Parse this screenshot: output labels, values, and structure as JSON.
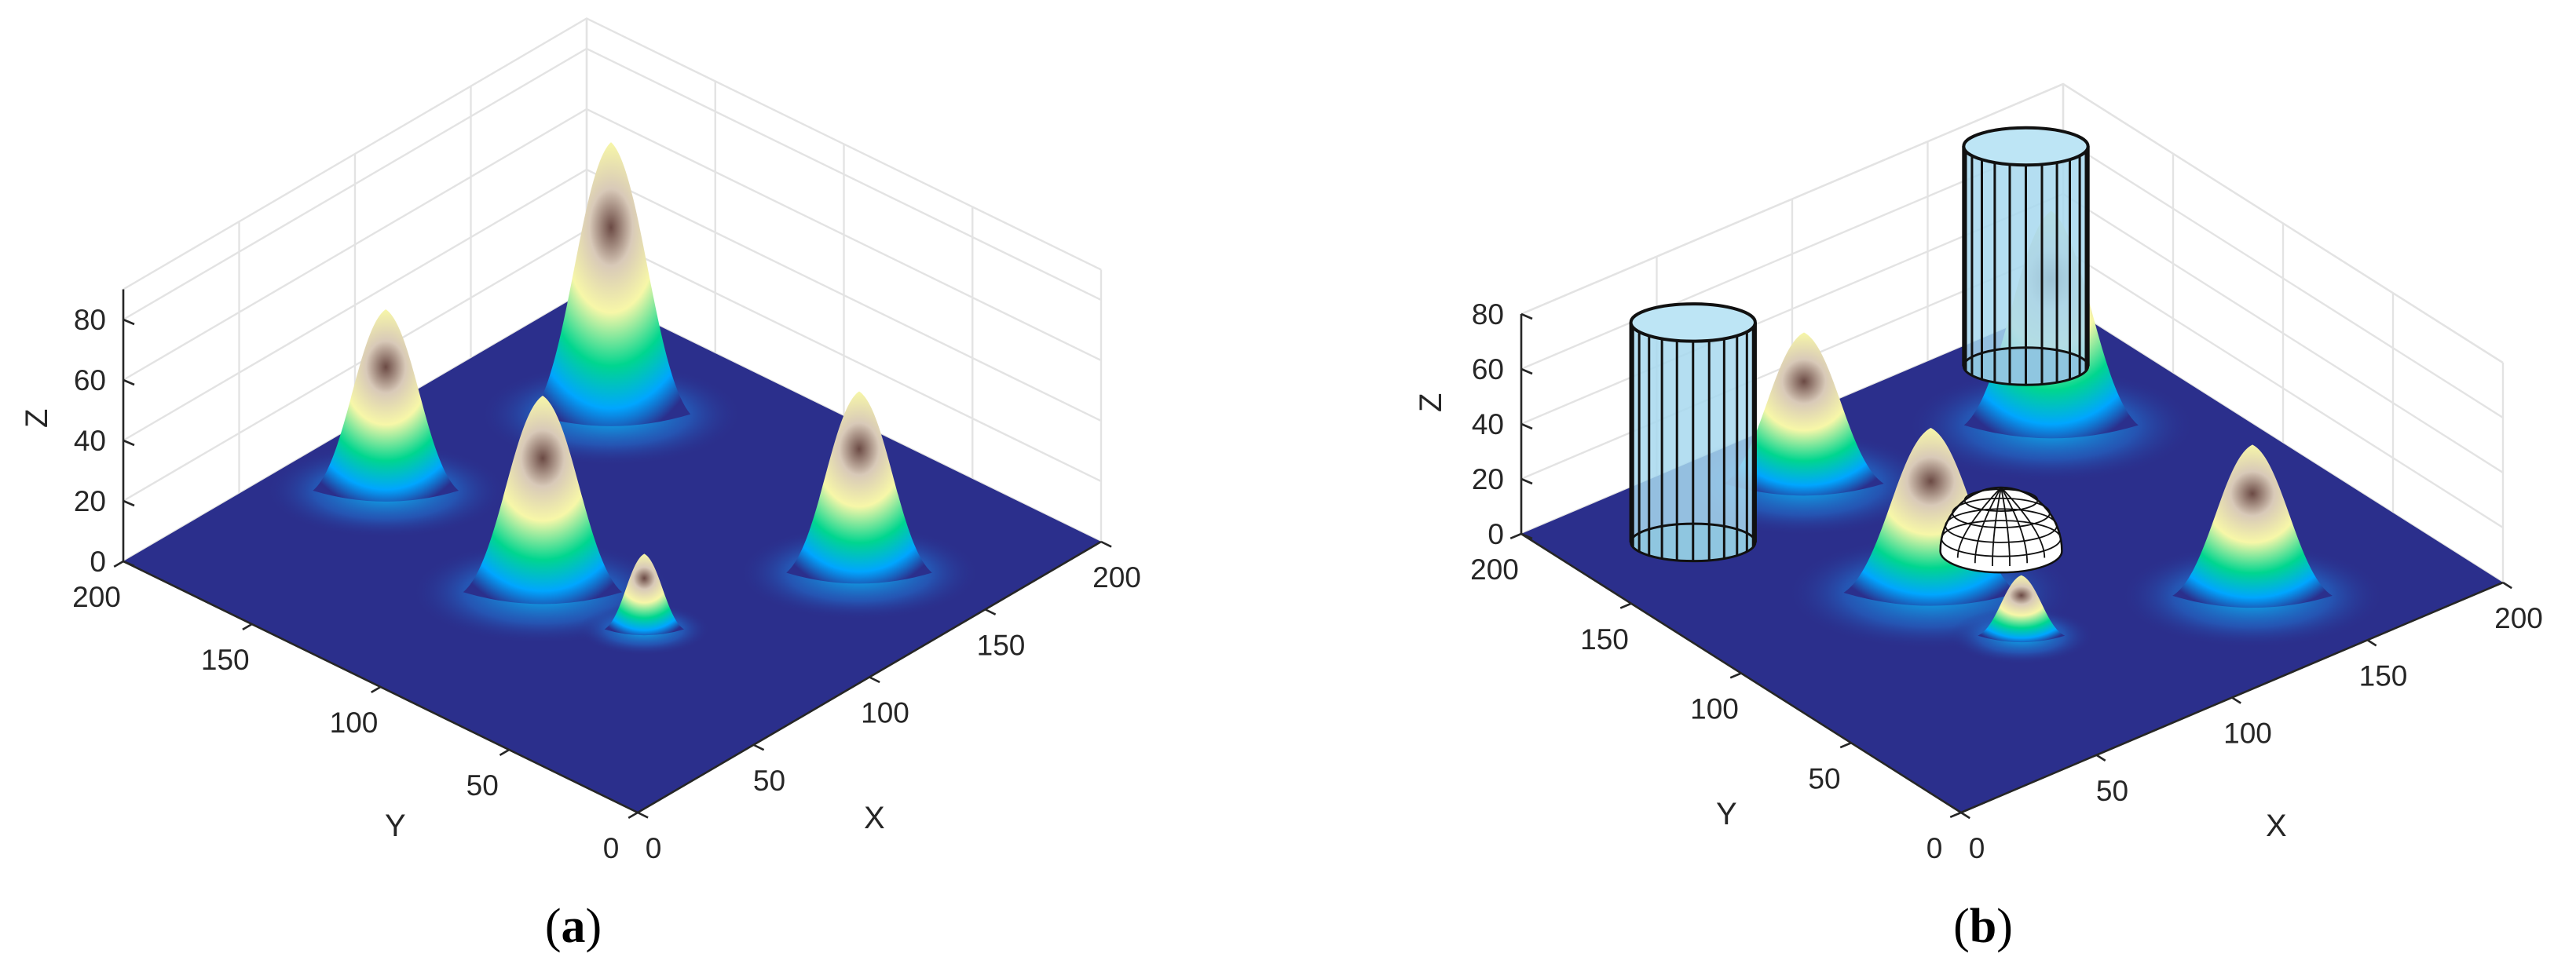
{
  "figure": {
    "panels": [
      {
        "caption_open": "(",
        "caption_letter": "a",
        "caption_close": ")"
      },
      {
        "caption_open": "(",
        "caption_letter": "b",
        "caption_close": ")"
      }
    ]
  },
  "chart_data": [
    {
      "type": "surface3d",
      "panel": "a",
      "xlabel": "X",
      "ylabel": "Y",
      "zlabel": "Z",
      "xlim": [
        0,
        200
      ],
      "ylim": [
        0,
        200
      ],
      "zlim": [
        0,
        90
      ],
      "xticks": [
        0,
        50,
        100,
        150,
        200
      ],
      "yticks": [
        0,
        50,
        100,
        150,
        200
      ],
      "zticks": [
        0,
        20,
        40,
        60,
        80
      ],
      "grid": true,
      "colormap": [
        "#2b2f8c",
        "#00a6ff",
        "#00d68f",
        "#f7f7a8",
        "#6b4a44"
      ],
      "peaks": [
        {
          "x": 155,
          "y": 150,
          "height": 90,
          "sigma": 12
        },
        {
          "x": 80,
          "y": 170,
          "height": 60,
          "sigma": 11
        },
        {
          "x": 140,
          "y": 40,
          "height": 60,
          "sigma": 11
        },
        {
          "x": 70,
          "y": 100,
          "height": 65,
          "sigma": 12
        },
        {
          "x": 75,
          "y": 65,
          "height": 25,
          "sigma": 6
        }
      ]
    },
    {
      "type": "surface3d",
      "panel": "b",
      "xlabel": "X",
      "ylabel": "Y",
      "zlabel": "Z",
      "xlim": [
        0,
        200
      ],
      "ylim": [
        0,
        200
      ],
      "zlim": [
        0,
        80
      ],
      "xticks": [
        0,
        50,
        100,
        150,
        200
      ],
      "yticks": [
        0,
        50,
        100,
        150,
        200
      ],
      "zticks": [
        0,
        20,
        40,
        60,
        80
      ],
      "grid": true,
      "colormap": [
        "#2b2f8c",
        "#00a6ff",
        "#00d68f",
        "#f7f7a8",
        "#6b4a44"
      ],
      "peaks": [
        {
          "x": 155,
          "y": 150,
          "height": 78,
          "sigma": 12
        },
        {
          "x": 80,
          "y": 170,
          "height": 55,
          "sigma": 11
        },
        {
          "x": 140,
          "y": 40,
          "height": 55,
          "sigma": 11
        },
        {
          "x": 70,
          "y": 100,
          "height": 60,
          "sigma": 12
        },
        {
          "x": 75,
          "y": 65,
          "height": 22,
          "sigma": 6
        }
      ],
      "obstacles": [
        {
          "shape": "cylinder",
          "x": 35,
          "y": 165,
          "radius": 12,
          "height": 80
        },
        {
          "shape": "cylinder",
          "x": 170,
          "y": 180,
          "radius": 12,
          "height": 80
        },
        {
          "shape": "sphere",
          "x": 100,
          "y": 105,
          "radius": 18
        }
      ]
    }
  ]
}
